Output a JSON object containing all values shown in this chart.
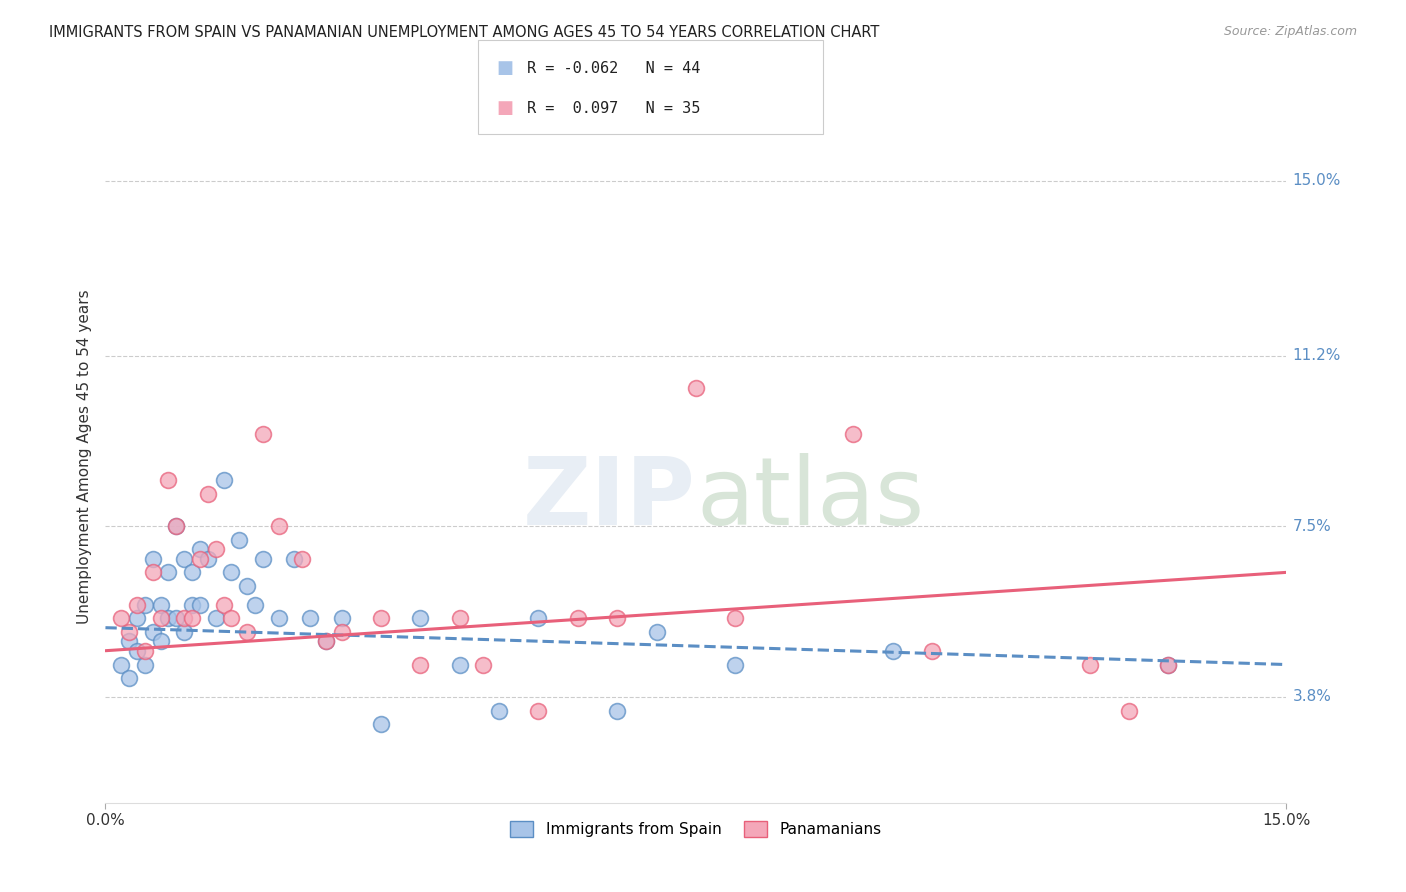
{
  "title": "IMMIGRANTS FROM SPAIN VS PANAMANIAN UNEMPLOYMENT AMONG AGES 45 TO 54 YEARS CORRELATION CHART",
  "source": "Source: ZipAtlas.com",
  "ylabel": "Unemployment Among Ages 45 to 54 years",
  "ytick_labels": [
    "3.8%",
    "7.5%",
    "11.2%",
    "15.0%"
  ],
  "ytick_values": [
    3.8,
    7.5,
    11.2,
    15.0
  ],
  "xlim": [
    0.0,
    15.0
  ],
  "ylim": [
    1.5,
    16.5
  ],
  "legend_blue_label": "Immigrants from Spain",
  "legend_pink_label": "Panamanians",
  "legend_blue_r": "-0.062",
  "legend_blue_n": "44",
  "legend_pink_r": " 0.097",
  "legend_pink_n": "35",
  "blue_color": "#a8c4e8",
  "pink_color": "#f4a7b9",
  "blue_line_color": "#5b8ec4",
  "pink_line_color": "#e8607a",
  "watermark_color": "#e8eef5",
  "blue_trend_start_y": 5.3,
  "blue_trend_end_y": 4.5,
  "pink_trend_start_y": 4.8,
  "pink_trend_end_y": 6.5,
  "blue_points_x": [
    0.2,
    0.3,
    0.3,
    0.4,
    0.4,
    0.5,
    0.5,
    0.6,
    0.6,
    0.7,
    0.7,
    0.8,
    0.8,
    0.9,
    0.9,
    1.0,
    1.0,
    1.1,
    1.1,
    1.2,
    1.2,
    1.3,
    1.4,
    1.5,
    1.6,
    1.7,
    1.8,
    1.9,
    2.0,
    2.2,
    2.4,
    2.6,
    2.8,
    3.0,
    3.5,
    4.0,
    4.5,
    5.0,
    5.5,
    6.5,
    7.0,
    8.0,
    10.0,
    13.5
  ],
  "blue_points_y": [
    4.5,
    5.0,
    4.2,
    5.5,
    4.8,
    5.8,
    4.5,
    5.2,
    6.8,
    5.0,
    5.8,
    6.5,
    5.5,
    7.5,
    5.5,
    6.8,
    5.2,
    6.5,
    5.8,
    7.0,
    5.8,
    6.8,
    5.5,
    8.5,
    6.5,
    7.2,
    6.2,
    5.8,
    6.8,
    5.5,
    6.8,
    5.5,
    5.0,
    5.5,
    3.2,
    5.5,
    4.5,
    3.5,
    5.5,
    3.5,
    5.2,
    4.5,
    4.8,
    4.5
  ],
  "pink_points_x": [
    0.2,
    0.3,
    0.4,
    0.5,
    0.6,
    0.7,
    0.8,
    0.9,
    1.0,
    1.1,
    1.2,
    1.3,
    1.4,
    1.5,
    1.6,
    1.8,
    2.0,
    2.2,
    2.5,
    2.8,
    3.0,
    3.5,
    4.0,
    4.5,
    4.8,
    5.5,
    6.0,
    6.5,
    7.5,
    8.0,
    9.5,
    10.5,
    12.5,
    13.0,
    13.5
  ],
  "pink_points_y": [
    5.5,
    5.2,
    5.8,
    4.8,
    6.5,
    5.5,
    8.5,
    7.5,
    5.5,
    5.5,
    6.8,
    8.2,
    7.0,
    5.8,
    5.5,
    5.2,
    9.5,
    7.5,
    6.8,
    5.0,
    5.2,
    5.5,
    4.5,
    5.5,
    4.5,
    3.5,
    5.5,
    5.5,
    10.5,
    5.5,
    9.5,
    4.8,
    4.5,
    3.5,
    4.5
  ]
}
